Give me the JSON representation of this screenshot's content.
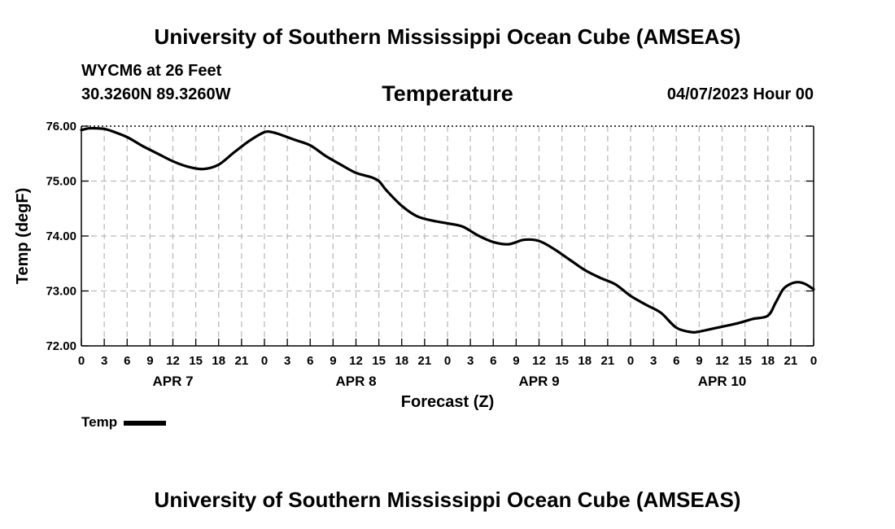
{
  "header": {
    "title": "University of Southern Mississippi Ocean Cube (AMSEAS)",
    "station": "WYCM6 at 26 Feet",
    "coords": "30.3260N  89.3260W",
    "datetime": "04/07/2023 Hour 00"
  },
  "footer": {
    "title": "University of Southern Mississippi Ocean Cube (AMSEAS)"
  },
  "legend": {
    "label": "Temp"
  },
  "chart_data": {
    "type": "line",
    "title": "Temperature",
    "xlabel": "Forecast (Z)",
    "ylabel": "Temp (degF)",
    "xlim": [
      0,
      96
    ],
    "ylim": [
      72,
      76
    ],
    "grid": true,
    "yticks": [
      72,
      73,
      74,
      75,
      76
    ],
    "ytick_labels": [
      "72.00",
      "73.00",
      "74.00",
      "75.00",
      "76.00"
    ],
    "xtick_labels": [
      "0",
      "3",
      "6",
      "9",
      "12",
      "15",
      "18",
      "21",
      "0",
      "3",
      "6",
      "9",
      "12",
      "15",
      "18",
      "21",
      "0",
      "3",
      "6",
      "9",
      "12",
      "15",
      "18",
      "21",
      "0",
      "3",
      "6",
      "9",
      "12",
      "15",
      "18",
      "21",
      "0"
    ],
    "day_labels": [
      {
        "label": "APR 7",
        "hour": 12
      },
      {
        "label": "APR 8",
        "hour": 36
      },
      {
        "label": "APR 9",
        "hour": 60
      },
      {
        "label": "APR 10",
        "hour": 84
      }
    ],
    "series": [
      {
        "name": "Temp",
        "color": "#000000",
        "x": [
          0,
          1,
          2,
          3,
          4,
          6,
          8,
          10,
          12,
          14,
          16,
          18,
          20,
          22,
          24,
          25,
          26,
          28,
          30,
          32,
          34,
          36,
          38,
          39,
          40,
          42,
          44,
          46,
          48,
          50,
          52,
          54,
          56,
          58,
          60,
          62,
          64,
          66,
          68,
          70,
          72,
          74,
          76,
          78,
          80,
          81,
          82,
          84,
          86,
          88,
          90,
          91,
          92,
          93,
          94,
          95,
          96
        ],
        "values": [
          75.93,
          75.96,
          75.96,
          75.95,
          75.91,
          75.8,
          75.64,
          75.5,
          75.36,
          75.26,
          75.22,
          75.3,
          75.52,
          75.73,
          75.89,
          75.89,
          75.85,
          75.75,
          75.65,
          75.46,
          75.3,
          75.15,
          75.07,
          75.0,
          74.83,
          74.55,
          74.36,
          74.28,
          74.23,
          74.17,
          74.01,
          73.89,
          73.85,
          73.93,
          73.91,
          73.76,
          73.57,
          73.38,
          73.24,
          73.12,
          72.91,
          72.75,
          72.6,
          72.33,
          72.25,
          72.26,
          72.29,
          72.35,
          72.41,
          72.49,
          72.55,
          72.78,
          73.03,
          73.13,
          73.16,
          73.12,
          73.03
        ]
      }
    ]
  }
}
